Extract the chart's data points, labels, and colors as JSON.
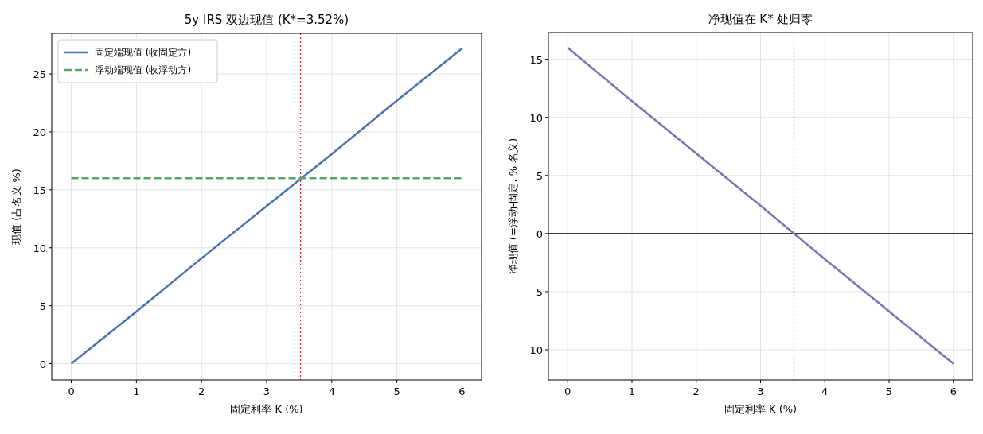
{
  "chart_data": [
    {
      "type": "line",
      "title": "5y IRS 双边现值 (K*=3.52%)",
      "xlabel": "固定利率 K (%)",
      "ylabel": "现值 (占名义 %)",
      "x": [
        0,
        1,
        2,
        3,
        4,
        5,
        6
      ],
      "xlim": [
        -0.3,
        6.3
      ],
      "ylim": [
        -1.4,
        28.5
      ],
      "xticks": [
        0,
        1,
        2,
        3,
        4,
        5,
        6
      ],
      "yticks": [
        0,
        5,
        10,
        15,
        20,
        25
      ],
      "grid": true,
      "legend": "top left",
      "series": [
        {
          "name": "固定端现值 (收固定方)",
          "color": "#4c72b0",
          "values": [
            0,
            4.5,
            9.1,
            13.6,
            18.1,
            22.7,
            27.2
          ],
          "line_style": "solid"
        },
        {
          "name": "浮动端现值 (收浮动方)",
          "color": "#55a868",
          "values": [
            16.0,
            16.0,
            16.0,
            16.0,
            16.0,
            16.0,
            16.0
          ],
          "line_style": "dashed"
        }
      ],
      "ref_lines": [
        {
          "axis": "x",
          "value": 3.52,
          "color": "#d62728",
          "line_style": "dotted"
        }
      ]
    },
    {
      "type": "line",
      "title": "净现值在 K* 处归零",
      "xlabel": "固定利率 K (%)",
      "ylabel": "净现值 (=浮动-固定, % 名义)",
      "x": [
        0,
        1,
        2,
        3,
        4,
        5,
        6
      ],
      "xlim": [
        -0.3,
        6.3
      ],
      "ylim": [
        -12.6,
        17.3
      ],
      "xticks": [
        0,
        1,
        2,
        3,
        4,
        5,
        6
      ],
      "yticks": [
        -10,
        -5,
        0,
        5,
        10,
        15
      ],
      "grid": true,
      "series": [
        {
          "color": "#8172b2",
          "values": [
            16.0,
            11.4,
            6.9,
            2.4,
            -2.2,
            -6.7,
            -11.2
          ],
          "line_style": "solid"
        }
      ],
      "ref_lines": [
        {
          "axis": "x",
          "value": 3.52,
          "color": "#d62728",
          "line_style": "dotted"
        },
        {
          "axis": "y",
          "value": 0,
          "color": "#000000",
          "line_style": "solid"
        }
      ]
    }
  ]
}
